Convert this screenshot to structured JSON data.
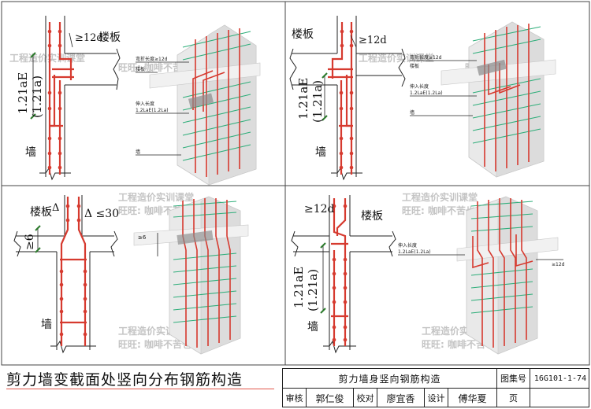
{
  "drawing": {
    "main_title": "剪力墙变截面处竖向分布钢筋构造",
    "panel_tl": {
      "label_slab": "楼板",
      "label_ge12d": "≥12d",
      "label_length_main": "1.21aE",
      "label_length_paren": "(1.21a)",
      "label_wall": "墙",
      "iso_note_bend": "弯折长度≥12d",
      "iso_note_slab": "楼板",
      "iso_note_anchor": "伸入长度",
      "iso_note_anchor_val": "1.2LaE(1.2La)",
      "iso_note_wall": "墙"
    },
    "panel_tr": {
      "label_slab": "楼板",
      "label_ge12d": "≥12d",
      "label_length_main": "1.21aE",
      "label_length_paren": "(1.21a)",
      "label_wall": "墙",
      "iso_note_bend": "弯折长度≥12d",
      "iso_note_slab": "楼板",
      "iso_note_anchor": "伸入长度",
      "iso_note_anchor_val": "1.2LaE(1.2La)",
      "iso_note_wall": "墙"
    },
    "panel_bl": {
      "label_slab": "楼板",
      "label_delta_left": "Δ",
      "label_delta_right": "Δ ≤30",
      "label_six": "≥6",
      "label_wall": "墙",
      "iso_note": "≥6"
    },
    "panel_br": {
      "label_slab": "楼板",
      "label_ge12d": "≥12d",
      "label_length_main": "1.21aE",
      "label_length_paren": "(1.21a)",
      "label_wall": "墙",
      "iso_note_anchor": "伸入长度",
      "iso_note_anchor_val": "1.2LaE(1.2La)",
      "iso_note_bend": "≥12d"
    },
    "watermark": {
      "line1": "工程造价实训课堂",
      "line2": "旺旺: 咖啡不苦也"
    }
  },
  "title_block": {
    "title": "剪力墙身竖向钢筋构造",
    "atlas_label": "图集号",
    "atlas_no": "16G101-1-74",
    "review_label": "审核",
    "review_name": "郭仁俊",
    "check_label": "校对",
    "check_name": "廖宜香",
    "design_label": "设计",
    "design_name": "傅华夏",
    "page_label": "页"
  },
  "colors": {
    "rebar": "#d63a2f",
    "distribution_bar": "#2fae7a",
    "line": "#222222",
    "wall_face": "#e7e7e7",
    "watermark": "#bdbdbd"
  }
}
